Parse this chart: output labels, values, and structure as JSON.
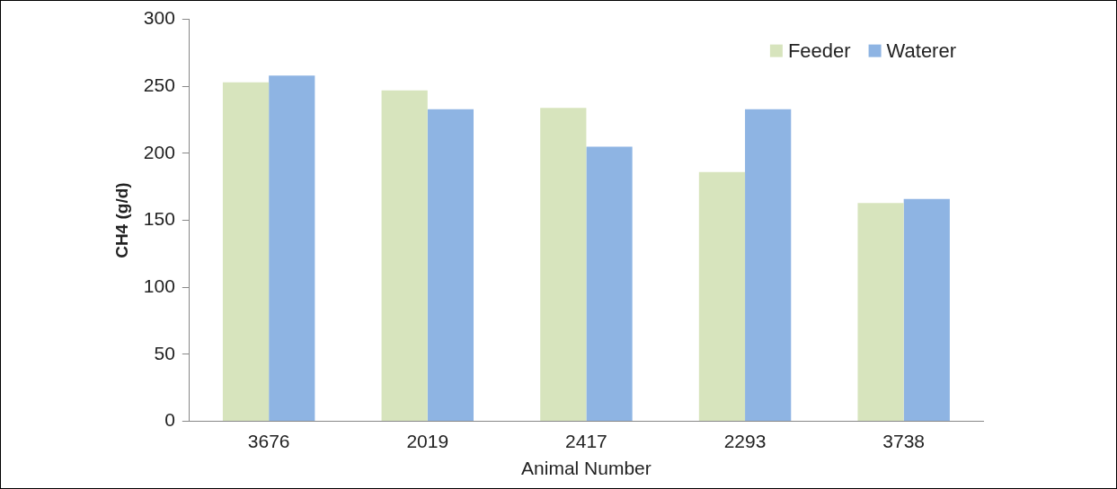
{
  "chart_data": {
    "type": "bar",
    "xlabel": "Animal Number",
    "ylabel": "CH4 (g/d)",
    "categories": [
      "3676",
      "2019",
      "2417",
      "2293",
      "3738"
    ],
    "series": [
      {
        "name": "Feeder",
        "color": "#d7e4bd",
        "values": [
          253,
          247,
          234,
          186,
          163
        ]
      },
      {
        "name": "Waterer",
        "color": "#8eb4e3",
        "values": [
          258,
          233,
          205,
          233,
          166
        ]
      }
    ],
    "ylim": [
      0,
      300
    ],
    "yticks": [
      0,
      50,
      100,
      150,
      200,
      250,
      300
    ],
    "grid": false,
    "legend": "top right"
  }
}
